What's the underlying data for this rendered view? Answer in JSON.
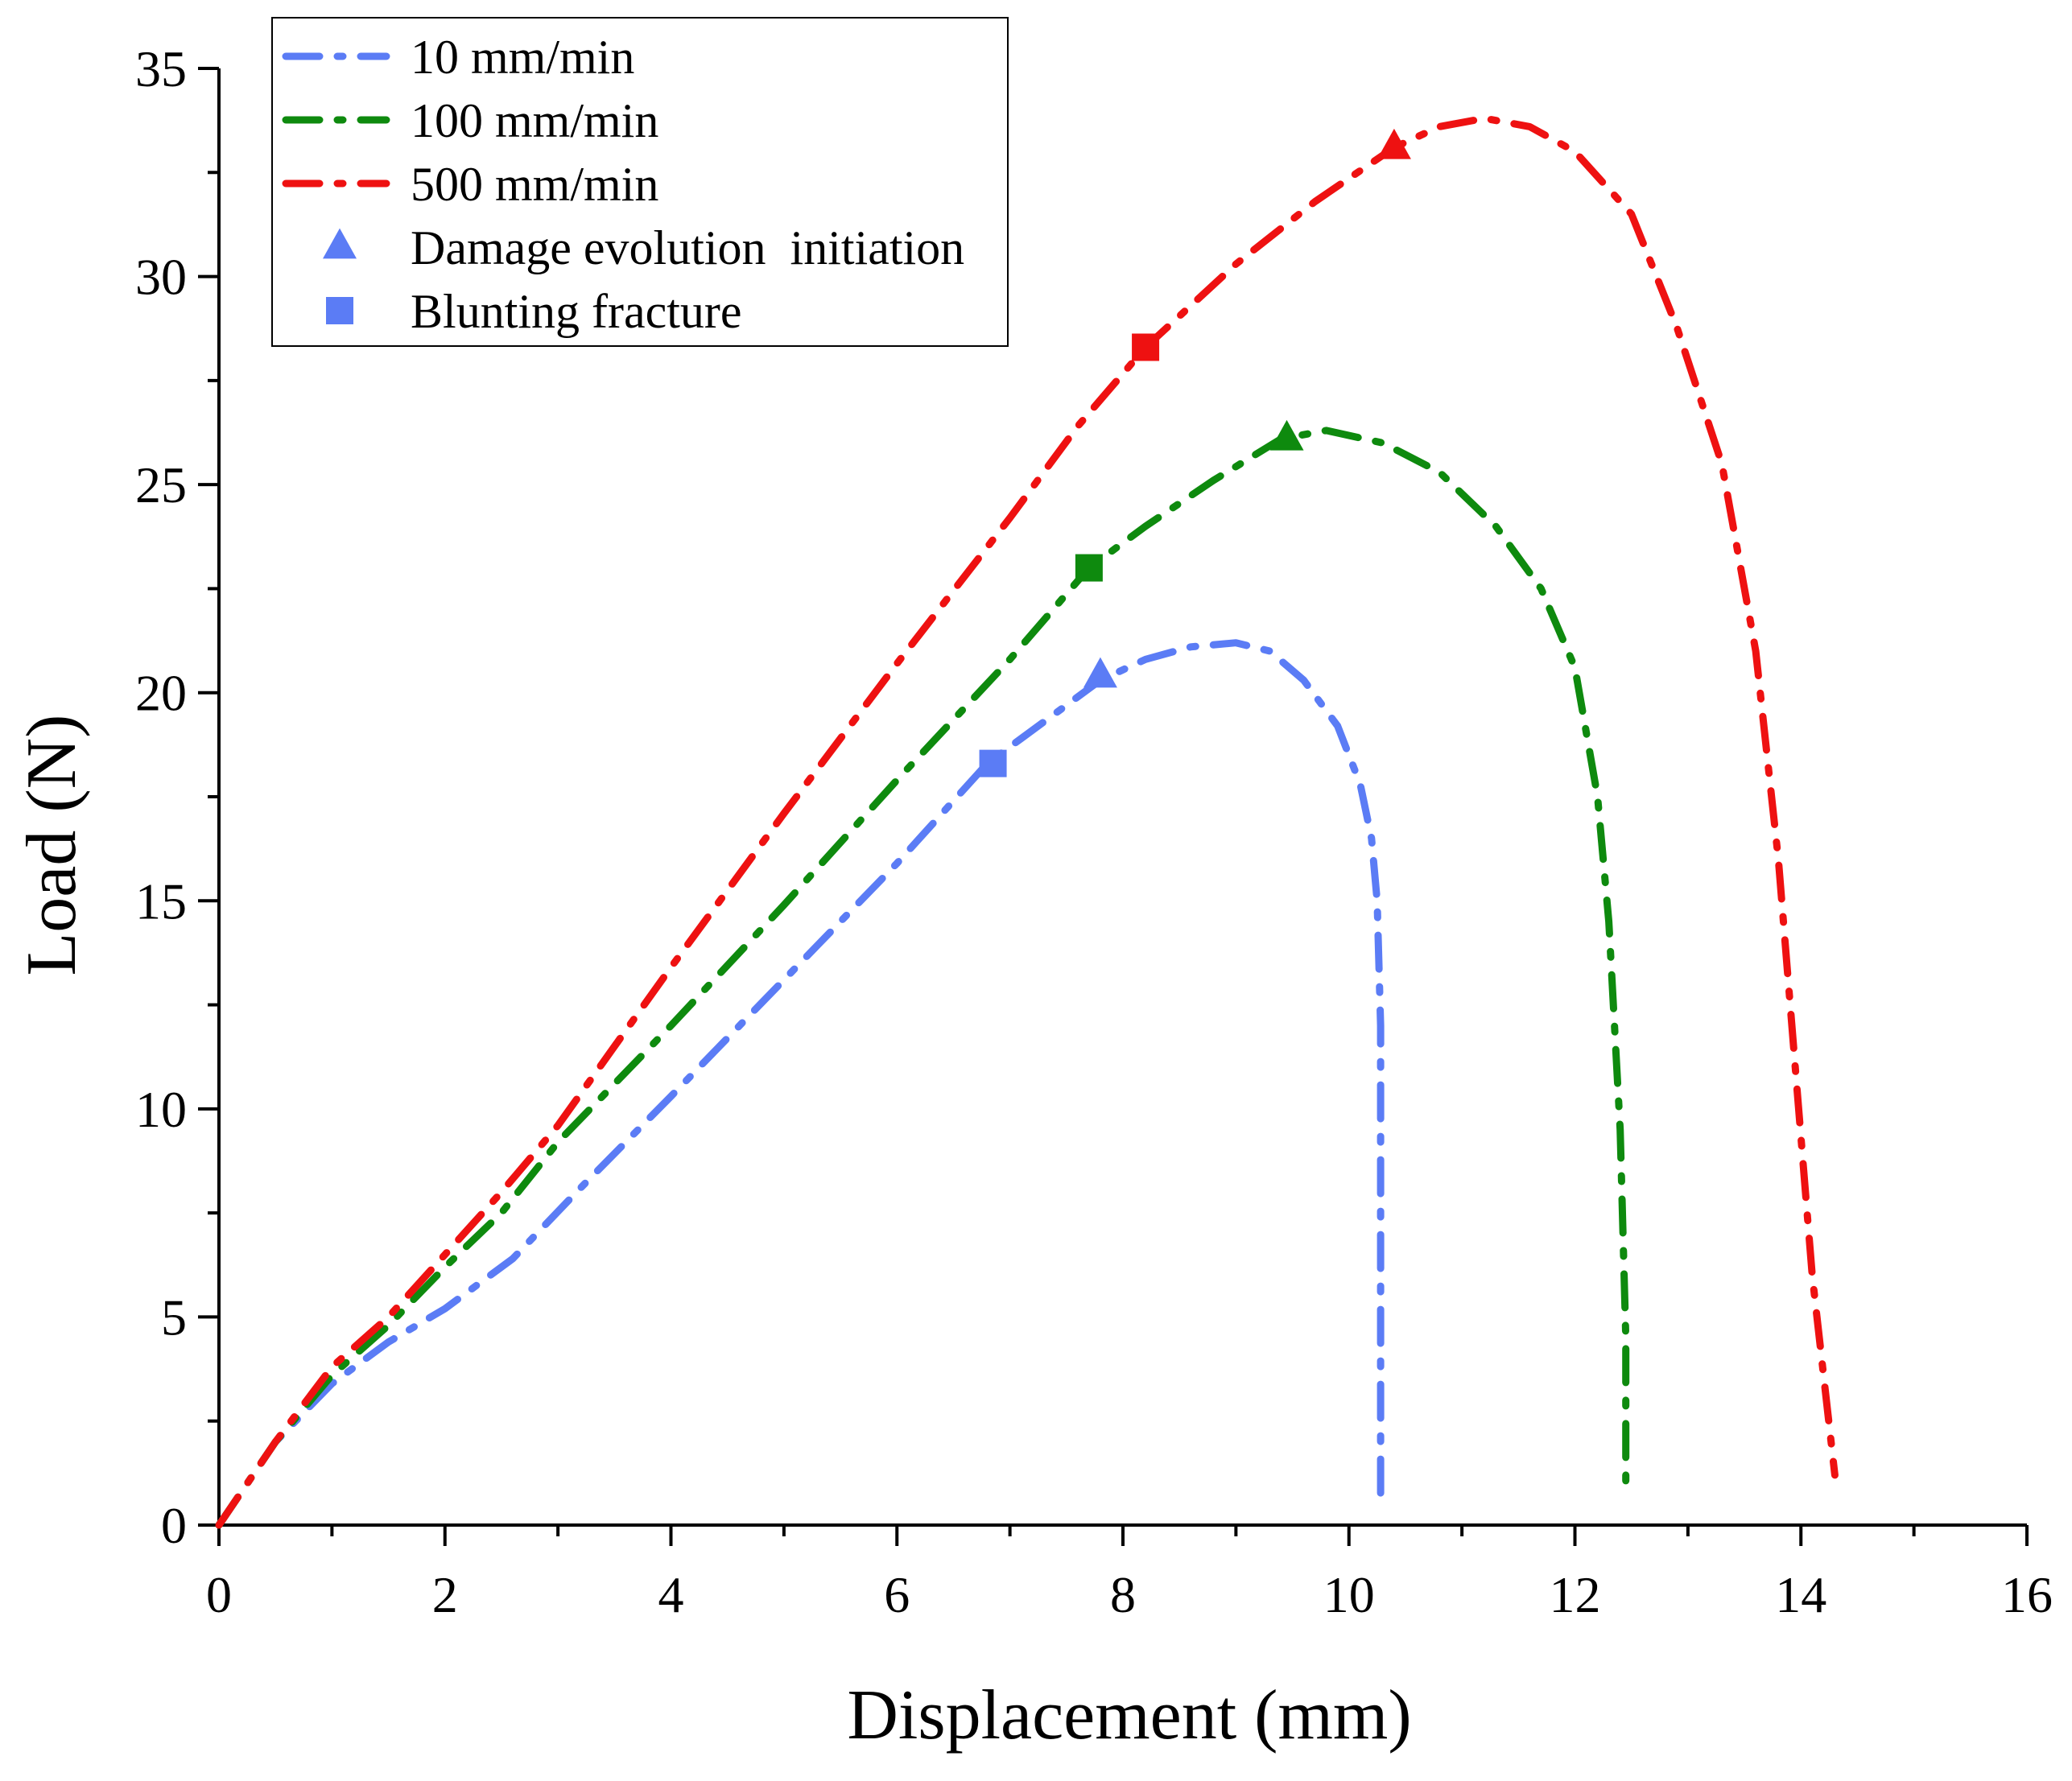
{
  "chart_data": {
    "type": "line",
    "title": "",
    "xlabel": "Displacement (mm)",
    "ylabel": "Load (N)",
    "xlim": [
      0,
      16
    ],
    "ylim": [
      0,
      35
    ],
    "xticks": [
      0,
      2,
      4,
      6,
      8,
      10,
      12,
      14,
      16
    ],
    "yticks": [
      0,
      5,
      10,
      15,
      20,
      25,
      30,
      35
    ],
    "series": [
      {
        "name": "10 mm/min",
        "color": "#5b7cf5",
        "x": [
          0,
          0.5,
          1.0,
          1.5,
          2.0,
          2.6,
          3.2,
          4.0,
          5.0,
          6.0,
          6.8,
          7.4,
          7.8,
          8.2,
          8.6,
          9.0,
          9.3,
          9.6,
          9.9,
          10.1,
          10.2,
          10.25,
          10.28,
          10.28,
          10.28,
          10.28
        ],
        "y": [
          0,
          2.0,
          3.4,
          4.4,
          5.2,
          6.4,
          8.1,
          10.3,
          13.1,
          15.9,
          18.3,
          19.5,
          20.3,
          20.8,
          21.1,
          21.2,
          21.0,
          20.3,
          19.2,
          17.8,
          16.5,
          15.0,
          12.0,
          8.0,
          4.0,
          0.7
        ],
        "damage_evolution_initiation": [
          7.8,
          20.4
        ],
        "blunting_fracture": [
          6.85,
          18.3
        ]
      },
      {
        "name": "100 mm/min",
        "color": "#0e8a0e",
        "x": [
          0,
          0.5,
          1.0,
          1.5,
          2.0,
          2.5,
          3.0,
          4.0,
          5.0,
          6.0,
          7.0,
          7.7,
          8.2,
          8.8,
          9.4,
          9.8,
          10.3,
          10.8,
          11.3,
          11.7,
          12.0,
          12.2,
          12.3,
          12.4,
          12.45,
          12.45
        ],
        "y": [
          0,
          2.0,
          3.6,
          4.8,
          6.2,
          7.5,
          9.2,
          12.0,
          14.9,
          17.9,
          20.8,
          23.0,
          24.0,
          25.1,
          26.1,
          26.3,
          26.0,
          25.3,
          24.0,
          22.5,
          20.6,
          17.5,
          14.5,
          9.5,
          4.5,
          0.7
        ],
        "damage_evolution_initiation": [
          9.45,
          26.1
        ],
        "blunting_fracture": [
          7.7,
          23.0
        ]
      },
      {
        "name": "500 mm/min",
        "color": "#ee1111",
        "x": [
          0,
          0.5,
          1.0,
          1.5,
          2.0,
          2.5,
          3.0,
          4.0,
          5.0,
          6.0,
          7.0,
          7.6,
          8.2,
          9.0,
          9.7,
          10.4,
          10.8,
          11.2,
          11.6,
          12.0,
          12.5,
          12.9,
          13.3,
          13.6,
          13.8,
          13.95,
          14.1,
          14.3
        ],
        "y": [
          0,
          2.0,
          3.8,
          5.0,
          6.5,
          8.0,
          9.6,
          13.4,
          17.1,
          20.7,
          24.2,
          26.4,
          28.3,
          30.3,
          31.8,
          33.1,
          33.6,
          33.8,
          33.6,
          33.0,
          31.5,
          28.8,
          25.5,
          21.0,
          16.0,
          11.0,
          6.0,
          1.2
        ],
        "damage_evolution_initiation": [
          10.4,
          33.1
        ],
        "blunting_fracture": [
          8.2,
          28.3
        ]
      }
    ],
    "legend": {
      "placement": "top-left",
      "entries": [
        "10 mm/min",
        "100 mm/min",
        "500 mm/min",
        "Damage evolution  initiation",
        "Blunting fracture"
      ],
      "marker_color": "#5b7cf5"
    }
  }
}
